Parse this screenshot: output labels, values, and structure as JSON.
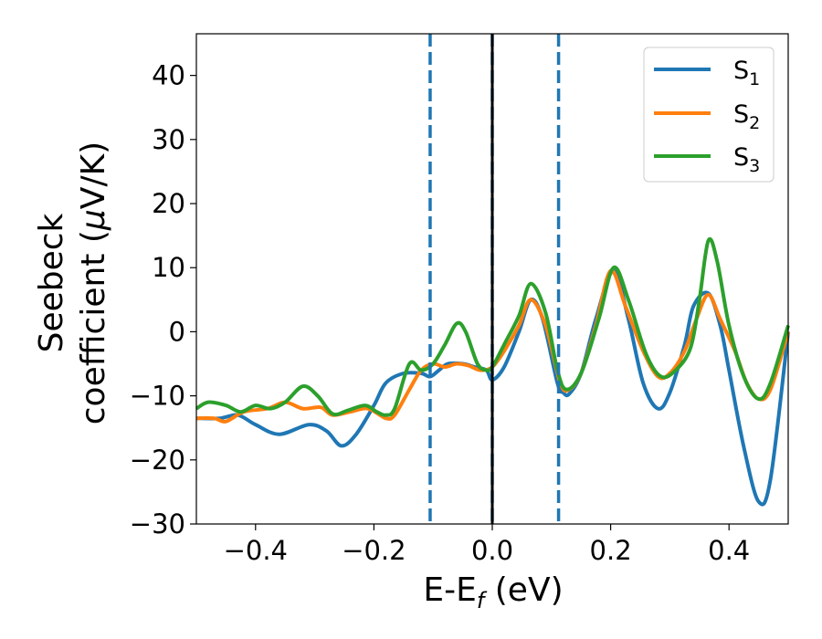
{
  "chart_data": {
    "type": "line",
    "xlabel": {
      "base": "E-E",
      "sub": "f",
      "tail": " (eV)"
    },
    "ylabel": {
      "line1": "Seebeck",
      "line2_pre": "coefficient  (",
      "mu": "μ",
      "line2_post": "V/K)"
    },
    "xlim": [
      -0.5,
      0.5
    ],
    "ylim": [
      -30,
      46.5
    ],
    "xticks": [
      -0.4,
      -0.2,
      0.0,
      0.2,
      0.4
    ],
    "xtick_labels": [
      "−0.4",
      "−0.2",
      "0.0",
      "0.2",
      "0.4"
    ],
    "yticks": [
      -30,
      -20,
      -10,
      0,
      10,
      20,
      30,
      40
    ],
    "ytick_labels": [
      "−30",
      "−20",
      "−10",
      "0",
      "10",
      "20",
      "30",
      "40"
    ],
    "grid": false,
    "legend_position": "top-right",
    "vlines": [
      {
        "x": -0.105,
        "style": "dashed",
        "color": "#1f77b4"
      },
      {
        "x": 0.0,
        "style": "dashed",
        "color": "#1f77b4"
      },
      {
        "x": 0.112,
        "style": "dashed",
        "color": "#1f77b4"
      },
      {
        "x": 0.0,
        "style": "solid",
        "color": "#000000"
      }
    ],
    "series": [
      {
        "name": "S",
        "sub": "1",
        "color": "#1f77b4",
        "x": [
          -0.5,
          -0.46,
          -0.43,
          -0.4,
          -0.36,
          -0.31,
          -0.28,
          -0.255,
          -0.23,
          -0.2,
          -0.18,
          -0.15,
          -0.12,
          -0.105,
          -0.09,
          -0.075,
          -0.05,
          -0.03,
          -0.01,
          0.0,
          0.02,
          0.045,
          0.065,
          0.085,
          0.11,
          0.12,
          0.13,
          0.15,
          0.175,
          0.205,
          0.23,
          0.255,
          0.28,
          0.3,
          0.325,
          0.34,
          0.365,
          0.385,
          0.4,
          0.425,
          0.45,
          0.47,
          0.5
        ],
        "values": [
          -13.5,
          -13.5,
          -13,
          -14.5,
          -16,
          -14.5,
          -15.5,
          -17.8,
          -16,
          -11.5,
          -8,
          -6.5,
          -6.5,
          -7,
          -6,
          -5,
          -5,
          -5.5,
          -6,
          -7.5,
          -5.5,
          0,
          5,
          2,
          -8,
          -9.5,
          -9.7,
          -6.5,
          2,
          9.5,
          2,
          -8,
          -12,
          -9.5,
          -2,
          4,
          6,
          1,
          -6,
          -18,
          -26.5,
          -23,
          0
        ]
      },
      {
        "name": "S",
        "sub": "2",
        "color": "#ff7f0e",
        "x": [
          -0.5,
          -0.47,
          -0.45,
          -0.42,
          -0.38,
          -0.35,
          -0.32,
          -0.29,
          -0.27,
          -0.24,
          -0.21,
          -0.18,
          -0.165,
          -0.14,
          -0.12,
          -0.1,
          -0.08,
          -0.06,
          -0.04,
          -0.02,
          0.0,
          0.02,
          0.045,
          0.065,
          0.09,
          0.115,
          0.13,
          0.15,
          0.175,
          0.2,
          0.225,
          0.255,
          0.28,
          0.3,
          0.325,
          0.345,
          0.365,
          0.385,
          0.41,
          0.43,
          0.45,
          0.47,
          0.5
        ],
        "values": [
          -13.5,
          -13.5,
          -14,
          -12.5,
          -12,
          -11,
          -12,
          -11.8,
          -13,
          -12.5,
          -12,
          -13.5,
          -13,
          -9,
          -6,
          -5,
          -5.5,
          -5,
          -5.3,
          -6,
          -5.5,
          -3,
          1,
          5,
          1,
          -8,
          -9,
          -6.5,
          1,
          9.5,
          4,
          -3,
          -7,
          -6.5,
          -3,
          2,
          5.8,
          2,
          -3,
          -8,
          -10.5,
          -9,
          0
        ]
      },
      {
        "name": "S",
        "sub": "3",
        "color": "#2ca02c",
        "x": [
          -0.5,
          -0.48,
          -0.45,
          -0.425,
          -0.4,
          -0.375,
          -0.35,
          -0.32,
          -0.295,
          -0.27,
          -0.245,
          -0.215,
          -0.195,
          -0.18,
          -0.165,
          -0.14,
          -0.12,
          -0.1,
          -0.08,
          -0.06,
          -0.045,
          -0.025,
          -0.01,
          0.0,
          0.02,
          0.045,
          0.065,
          0.09,
          0.11,
          0.125,
          0.15,
          0.18,
          0.205,
          0.23,
          0.26,
          0.285,
          0.31,
          0.335,
          0.35,
          0.365,
          0.38,
          0.4,
          0.425,
          0.45,
          0.47,
          0.5
        ],
        "values": [
          -12,
          -11,
          -11.5,
          -12.5,
          -11.5,
          -12,
          -11,
          -8.5,
          -10,
          -12.8,
          -12.3,
          -11.5,
          -12.5,
          -13,
          -12,
          -5,
          -6,
          -5,
          -2,
          1.3,
          0,
          -5,
          -6,
          -5.5,
          -2,
          2.5,
          7.5,
          3,
          -6,
          -9,
          -6.5,
          2,
          10,
          5,
          -3.5,
          -7,
          -6,
          -2.5,
          5,
          14.2,
          11,
          1,
          -7,
          -10.5,
          -8,
          1
        ]
      }
    ]
  }
}
